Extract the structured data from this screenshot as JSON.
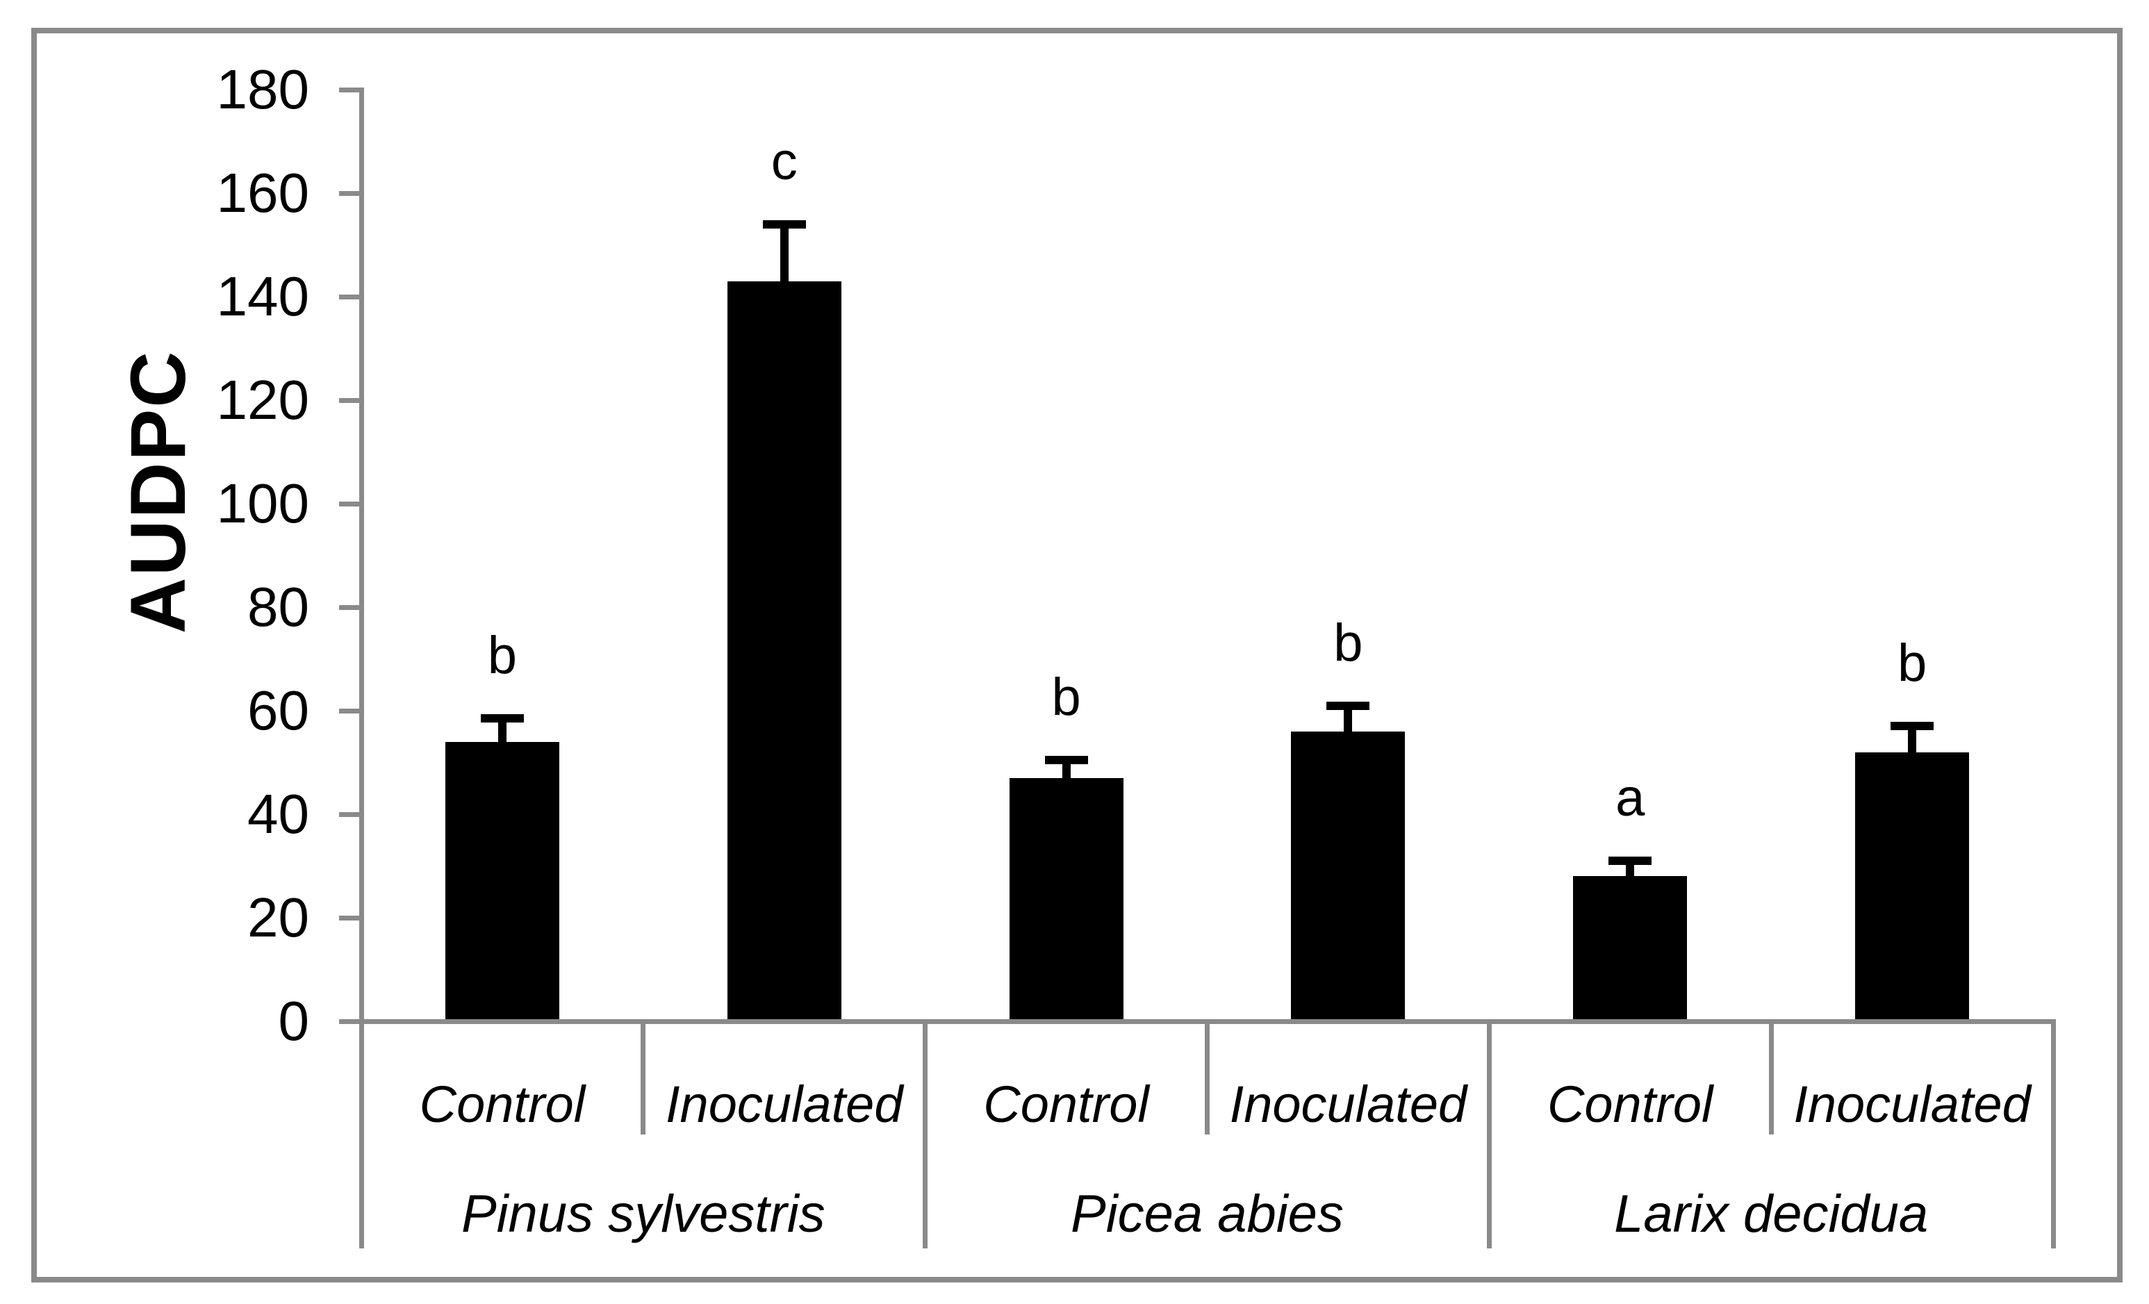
{
  "chart_data": {
    "type": "bar",
    "title": "",
    "ylabel": "AUDPC",
    "xlabel": "",
    "ylim": [
      0,
      180
    ],
    "yticks": [
      0,
      20,
      40,
      60,
      80,
      100,
      120,
      140,
      160,
      180
    ],
    "grid": false,
    "legend": null,
    "bar_color": "#000000",
    "axis_color": "#8a8a8a",
    "text_color": "#000000",
    "error_bar_color": "#000000",
    "categories": [
      "Control",
      "Inoculated",
      "Control",
      "Inoculated",
      "Control",
      "Inoculated"
    ],
    "groups": [
      {
        "species": "Pinus sylvestris",
        "bars": [
          {
            "treatment": "Control",
            "value": 54,
            "error": 4.5,
            "letter": "b"
          },
          {
            "treatment": "Inoculated",
            "value": 143,
            "error": 11,
            "letter": "c"
          }
        ]
      },
      {
        "species": "Picea abies",
        "bars": [
          {
            "treatment": "Control",
            "value": 47,
            "error": 3.5,
            "letter": "b"
          },
          {
            "treatment": "Inoculated",
            "value": 56,
            "error": 5,
            "letter": "b"
          }
        ]
      },
      {
        "species": "Larix decidua",
        "bars": [
          {
            "treatment": "Control",
            "value": 28,
            "error": 3,
            "letter": "a"
          },
          {
            "treatment": "Inoculated",
            "value": 52,
            "error": 5,
            "letter": "b"
          }
        ]
      }
    ]
  }
}
